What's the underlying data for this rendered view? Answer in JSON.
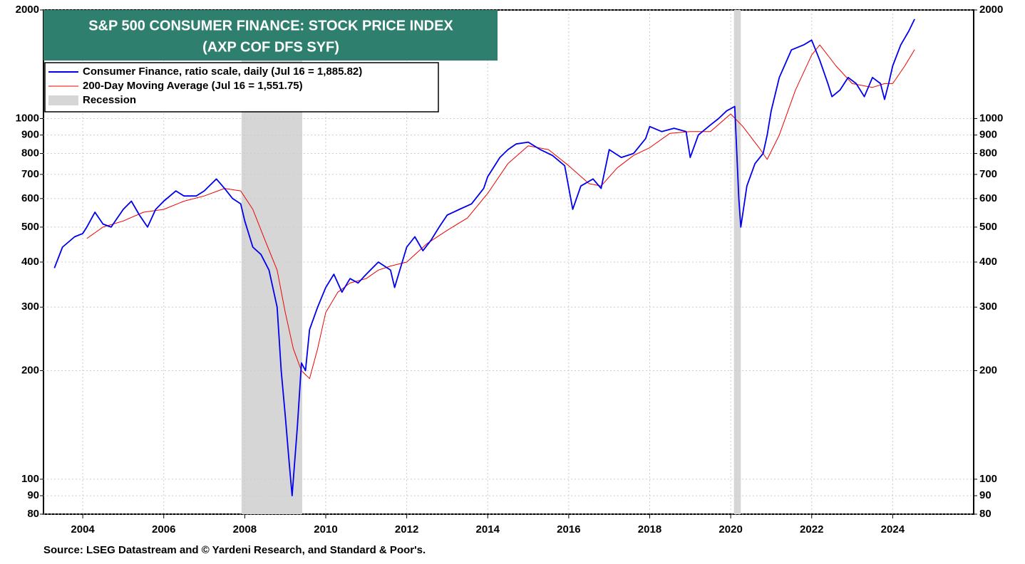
{
  "chart_data": {
    "type": "line",
    "title": "S&P 500 CONSUMER FINANCE: STOCK PRICE INDEX",
    "subtitle": "(AXP COF DFS SYF)",
    "source": "Source: LSEG Datastream and © Yardeni Research, and Standard & Poor's.",
    "log_scale": true,
    "grid": true,
    "legend": "upper left",
    "xlim": [
      2003.03,
      2026.0
    ],
    "xticks": [
      2004,
      2006,
      2008,
      2010,
      2012,
      2014,
      2016,
      2018,
      2020,
      2022,
      2024
    ],
    "ylim": [
      80,
      2000
    ],
    "yticks": [
      80,
      90,
      100,
      200,
      300,
      400,
      500,
      600,
      700,
      800,
      900,
      1000,
      2000
    ],
    "recession_label": "Recession",
    "recession_color": "#d6d6d6",
    "recessions": [
      [
        2007.92,
        2009.42
      ],
      [
        2020.08,
        2020.25
      ]
    ],
    "series": [
      {
        "name": "Consumer Finance, ratio scale, daily (Jul 16 = 1,885.82)",
        "color": "#0000ee",
        "x": [
          2003.3,
          2003.5,
          2003.8,
          2004.0,
          2004.1,
          2004.3,
          2004.5,
          2004.7,
          2005.0,
          2005.2,
          2005.4,
          2005.6,
          2005.8,
          2006.0,
          2006.3,
          2006.5,
          2006.8,
          2007.0,
          2007.3,
          2007.5,
          2007.7,
          2007.9,
          2008.0,
          2008.2,
          2008.4,
          2008.6,
          2008.8,
          2008.9,
          2009.0,
          2009.1,
          2009.17,
          2009.3,
          2009.4,
          2009.5,
          2009.6,
          2009.8,
          2010.0,
          2010.2,
          2010.4,
          2010.6,
          2010.8,
          2011.0,
          2011.3,
          2011.6,
          2011.7,
          2012.0,
          2012.2,
          2012.4,
          2012.6,
          2012.8,
          2013.0,
          2013.3,
          2013.6,
          2013.9,
          2014.0,
          2014.3,
          2014.5,
          2014.7,
          2015.0,
          2015.3,
          2015.6,
          2015.9,
          2016.1,
          2016.3,
          2016.6,
          2016.8,
          2017.0,
          2017.3,
          2017.6,
          2017.9,
          2018.0,
          2018.3,
          2018.6,
          2018.9,
          2019.0,
          2019.2,
          2019.5,
          2019.7,
          2019.9,
          2020.1,
          2020.2,
          2020.25,
          2020.4,
          2020.6,
          2020.8,
          2020.9,
          2021.0,
          2021.2,
          2021.5,
          2021.8,
          2022.0,
          2022.2,
          2022.4,
          2022.5,
          2022.7,
          2022.9,
          2023.1,
          2023.3,
          2023.5,
          2023.7,
          2023.8,
          2023.9,
          2024.0,
          2024.2,
          2024.4,
          2024.54
        ],
        "values": [
          385,
          440,
          470,
          480,
          500,
          550,
          510,
          500,
          560,
          590,
          540,
          500,
          560,
          590,
          630,
          610,
          610,
          630,
          680,
          640,
          600,
          580,
          520,
          440,
          420,
          380,
          300,
          200,
          150,
          110,
          90,
          140,
          210,
          200,
          260,
          300,
          340,
          370,
          330,
          360,
          350,
          370,
          400,
          380,
          340,
          440,
          470,
          430,
          460,
          500,
          540,
          560,
          580,
          640,
          690,
          780,
          820,
          850,
          860,
          820,
          790,
          740,
          560,
          650,
          680,
          640,
          820,
          780,
          800,
          880,
          950,
          920,
          940,
          920,
          780,
          900,
          960,
          1000,
          1050,
          1080,
          600,
          500,
          650,
          750,
          800,
          900,
          1050,
          1300,
          1550,
          1600,
          1650,
          1450,
          1250,
          1150,
          1200,
          1300,
          1250,
          1150,
          1300,
          1250,
          1130,
          1250,
          1400,
          1600,
          1750,
          1885.82
        ]
      },
      {
        "name": "200-Day Moving Average (Jul 16 = 1,551.75)",
        "color": "#ee0000",
        "x": [
          2004.1,
          2004.5,
          2005.0,
          2005.5,
          2006.0,
          2006.5,
          2007.0,
          2007.5,
          2007.9,
          2008.2,
          2008.5,
          2008.8,
          2009.0,
          2009.2,
          2009.4,
          2009.6,
          2009.8,
          2010.0,
          2010.3,
          2010.6,
          2011.0,
          2011.3,
          2011.6,
          2012.0,
          2012.5,
          2013.0,
          2013.5,
          2014.0,
          2014.5,
          2015.0,
          2015.5,
          2016.0,
          2016.5,
          2016.8,
          2017.2,
          2017.6,
          2018.0,
          2018.5,
          2019.0,
          2019.5,
          2020.0,
          2020.3,
          2020.7,
          2020.9,
          2021.2,
          2021.6,
          2022.0,
          2022.2,
          2022.6,
          2023.0,
          2023.5,
          2023.8,
          2024.0,
          2024.3,
          2024.54
        ],
        "values": [
          465,
          500,
          520,
          550,
          560,
          590,
          610,
          640,
          630,
          560,
          460,
          380,
          290,
          230,
          200,
          190,
          230,
          290,
          330,
          350,
          360,
          380,
          390,
          400,
          450,
          490,
          530,
          620,
          750,
          840,
          820,
          740,
          660,
          650,
          730,
          790,
          830,
          910,
          920,
          920,
          1030,
          950,
          830,
          770,
          900,
          1200,
          1500,
          1600,
          1400,
          1250,
          1220,
          1250,
          1250,
          1400,
          1551.75
        ]
      }
    ]
  }
}
